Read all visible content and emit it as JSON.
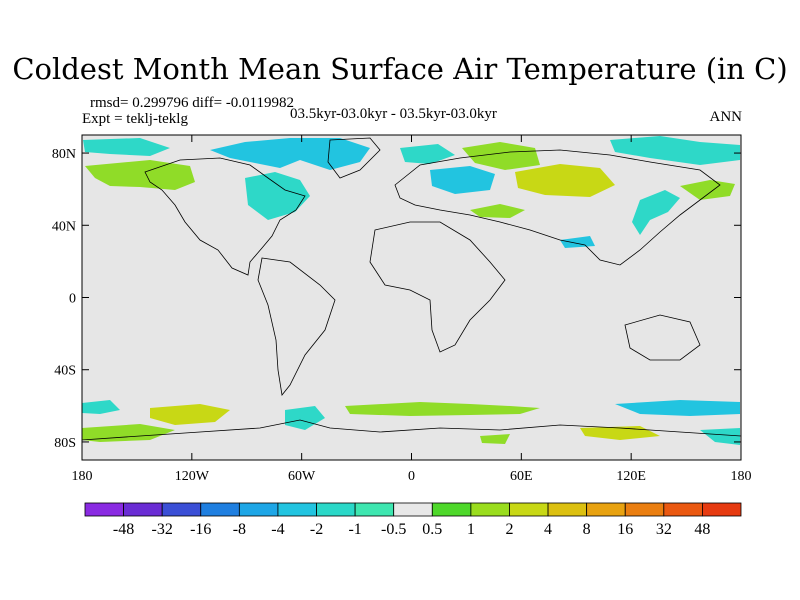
{
  "title": "Coldest Month Mean Surface Air Temperature (in C)",
  "stats": {
    "rmsd_text": "rmsd= 0.299796",
    "diff_text": "diff= -0.0119982"
  },
  "experiment": "Expt = teklj-teklg",
  "period": "03.5kyr-03.0kyr - 03.5kyr-03.0kyr",
  "season": "ANN",
  "axes": {
    "lat_labels": [
      {
        "text": "80N",
        "lat": 80
      },
      {
        "text": "40N",
        "lat": 40
      },
      {
        "text": "0",
        "lat": 0
      },
      {
        "text": "40S",
        "lat": -40
      },
      {
        "text": "80S",
        "lat": -80
      }
    ],
    "lon_labels": [
      {
        "text": "180",
        "lon": -180
      },
      {
        "text": "120W",
        "lon": -120
      },
      {
        "text": "60W",
        "lon": -60
      },
      {
        "text": "0",
        "lon": 0
      },
      {
        "text": "60E",
        "lon": 60
      },
      {
        "text": "120E",
        "lon": 120
      },
      {
        "text": "180",
        "lon": 180
      }
    ]
  },
  "colorbar": {
    "colors": [
      "#8a2be2",
      "#6a2cd4",
      "#3b4fd6",
      "#1f7fe0",
      "#1ea6e6",
      "#22c4e0",
      "#2ad8c8",
      "#3ee6b0",
      "#e8e8e8",
      "#4ed82a",
      "#9add1e",
      "#c8d815",
      "#dcc010",
      "#e8a210",
      "#ea7e10",
      "#ea5810",
      "#e63a10"
    ],
    "labels": [
      "-48",
      "-32",
      "-16",
      "-8",
      "-4",
      "-2",
      "-1",
      "-0.5",
      "0.5",
      "1",
      "2",
      "4",
      "8",
      "16",
      "32",
      "48"
    ]
  },
  "field_colors": {
    "ocean_background": "#e6e6e6",
    "anomaly_neg": "#2ed8c8",
    "anomaly_neg_strong": "#22c4e0",
    "anomaly_pos": "#90dc28",
    "anomaly_pos_strong": "#c8d815"
  }
}
